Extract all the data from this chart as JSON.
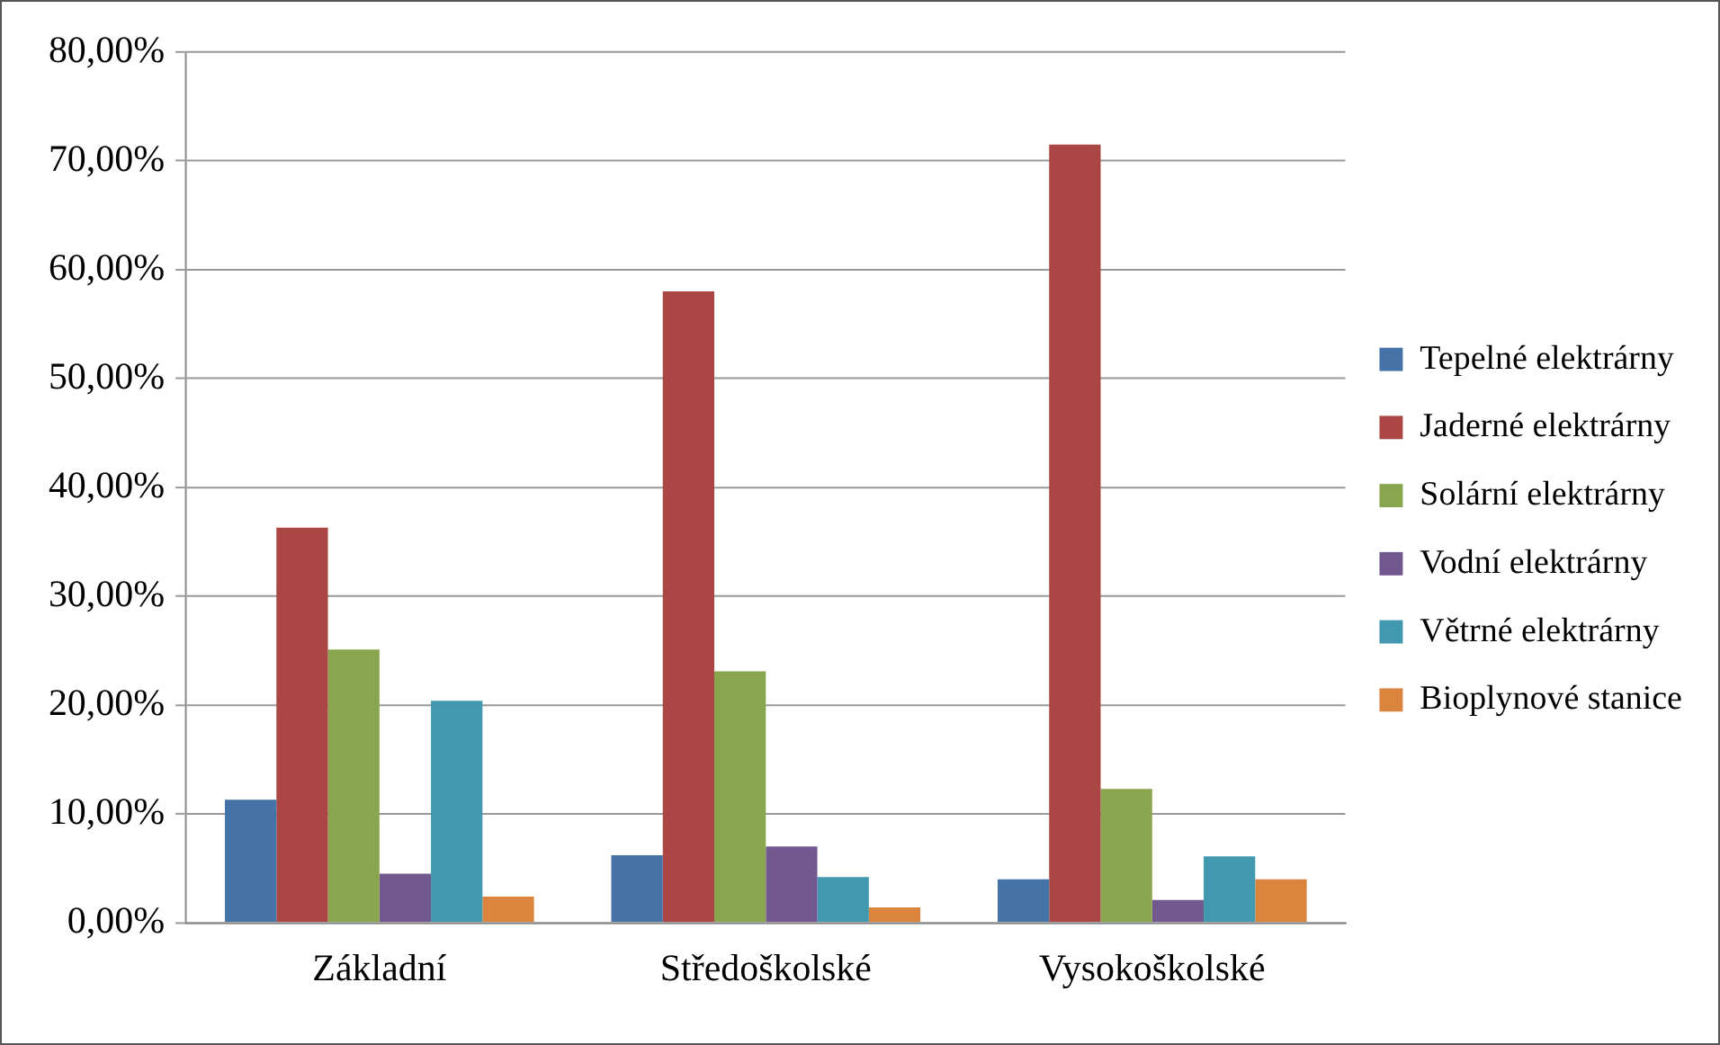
{
  "chart_data": {
    "type": "bar",
    "categories": [
      "Základní",
      "Středoškolské",
      "Vysokoškolské"
    ],
    "series": [
      {
        "name": "Tepelné elektrárny",
        "color": "#4572a7",
        "values": [
          11.3,
          6.2,
          4.0
        ]
      },
      {
        "name": "Jaderné elektrárny",
        "color": "#aa4643",
        "values": [
          36.3,
          58.0,
          71.5
        ]
      },
      {
        "name": "Solární elektrárny",
        "color": "#89a54e",
        "values": [
          25.1,
          23.1,
          12.3
        ]
      },
      {
        "name": "Vodní elektrárny",
        "color": "#71588f",
        "values": [
          4.5,
          7.0,
          2.1
        ]
      },
      {
        "name": "Větrné elektrárny",
        "color": "#4198af",
        "values": [
          20.4,
          4.2,
          6.1
        ]
      },
      {
        "name": "Bioplynové stanice",
        "color": "#db843d",
        "values": [
          2.4,
          1.4,
          4.0
        ]
      }
    ],
    "ylim": [
      0,
      80
    ],
    "yticks": [
      {
        "value": 0,
        "label": "0,00%"
      },
      {
        "value": 10,
        "label": "10,00%"
      },
      {
        "value": 20,
        "label": "20,00%"
      },
      {
        "value": 30,
        "label": "30,00%"
      },
      {
        "value": 40,
        "label": "40,00%"
      },
      {
        "value": 50,
        "label": "50,00%"
      },
      {
        "value": 60,
        "label": "60,00%"
      },
      {
        "value": 70,
        "label": "70,00%"
      },
      {
        "value": 80,
        "label": "80,00%"
      }
    ],
    "grid": "y",
    "legend": "right"
  }
}
